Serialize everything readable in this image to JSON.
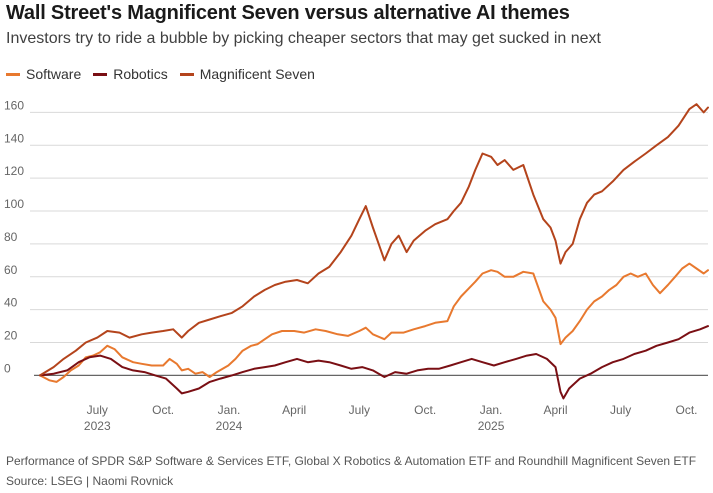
{
  "header": {
    "title": "Wall Street's Magnificent Seven versus alternative AI themes",
    "subtitle": "Investors try to ride a bubble by picking cheaper sectors that may get sucked in next"
  },
  "footer": {
    "note": "Performance of SPDR S&P Software & Services ETF, Global X Robotics & Automation ETF and Roundhill Magnificent Seven ETF",
    "source": "Source: LSEG | Naomi Rovnick"
  },
  "chart_data": {
    "type": "line",
    "title": "Wall Street's Magnificent Seven versus alternative AI themes",
    "subtitle": "Investors try to ride a bubble by picking cheaper sectors that may get sucked in next",
    "xlabel": "",
    "ylabel": "",
    "ylim": [
      -15,
      170
    ],
    "xlim": [
      "2023-04-12",
      "2025-10-31"
    ],
    "yticks": [
      0,
      20,
      40,
      60,
      80,
      100,
      120,
      140,
      160
    ],
    "xticks": [
      {
        "date": "2023-07-01",
        "label": "July",
        "year": "2023"
      },
      {
        "date": "2023-10-01",
        "label": "Oct.",
        "year": ""
      },
      {
        "date": "2024-01-01",
        "label": "Jan.",
        "year": "2024"
      },
      {
        "date": "2024-04-01",
        "label": "April",
        "year": ""
      },
      {
        "date": "2024-07-01",
        "label": "July",
        "year": ""
      },
      {
        "date": "2024-10-01",
        "label": "Oct.",
        "year": ""
      },
      {
        "date": "2025-01-01",
        "label": "Jan.",
        "year": "2025"
      },
      {
        "date": "2025-04-01",
        "label": "April",
        "year": ""
      },
      {
        "date": "2025-07-01",
        "label": "July",
        "year": ""
      },
      {
        "date": "2025-10-01",
        "label": "Oct.",
        "year": ""
      }
    ],
    "grid": true,
    "legend_position": "top-left",
    "series": [
      {
        "name": "Software",
        "color": "#e8792f",
        "points": [
          [
            "2023-04-12",
            0
          ],
          [
            "2023-04-25",
            -3
          ],
          [
            "2023-05-05",
            -4
          ],
          [
            "2023-05-15",
            -1
          ],
          [
            "2023-05-25",
            3
          ],
          [
            "2023-06-05",
            6
          ],
          [
            "2023-06-15",
            11
          ],
          [
            "2023-06-25",
            12
          ],
          [
            "2023-07-05",
            14
          ],
          [
            "2023-07-15",
            18
          ],
          [
            "2023-07-25",
            16
          ],
          [
            "2023-08-05",
            11
          ],
          [
            "2023-08-20",
            8
          ],
          [
            "2023-09-01",
            7
          ],
          [
            "2023-09-15",
            6
          ],
          [
            "2023-10-01",
            6
          ],
          [
            "2023-10-10",
            10
          ],
          [
            "2023-10-20",
            7
          ],
          [
            "2023-10-27",
            3
          ],
          [
            "2023-11-05",
            4
          ],
          [
            "2023-11-15",
            1
          ],
          [
            "2023-11-25",
            2
          ],
          [
            "2023-12-05",
            -1
          ],
          [
            "2023-12-15",
            2
          ],
          [
            "2023-12-31",
            6
          ],
          [
            "2024-01-10",
            10
          ],
          [
            "2024-01-20",
            15
          ],
          [
            "2024-02-01",
            18
          ],
          [
            "2024-02-10",
            19
          ],
          [
            "2024-02-20",
            22
          ],
          [
            "2024-03-01",
            25
          ],
          [
            "2024-03-15",
            27
          ],
          [
            "2024-04-01",
            27
          ],
          [
            "2024-04-15",
            26
          ],
          [
            "2024-05-01",
            28
          ],
          [
            "2024-05-15",
            27
          ],
          [
            "2024-06-01",
            25
          ],
          [
            "2024-06-15",
            24
          ],
          [
            "2024-07-01",
            27
          ],
          [
            "2024-07-10",
            29
          ],
          [
            "2024-07-20",
            25
          ],
          [
            "2024-08-05",
            22
          ],
          [
            "2024-08-15",
            26
          ],
          [
            "2024-09-01",
            26
          ],
          [
            "2024-09-15",
            28
          ],
          [
            "2024-10-01",
            30
          ],
          [
            "2024-10-15",
            32
          ],
          [
            "2024-11-01",
            33
          ],
          [
            "2024-11-10",
            42
          ],
          [
            "2024-11-20",
            48
          ],
          [
            "2024-12-01",
            53
          ],
          [
            "2024-12-10",
            57
          ],
          [
            "2024-12-20",
            62
          ],
          [
            "2025-01-01",
            64
          ],
          [
            "2025-01-10",
            63
          ],
          [
            "2025-01-20",
            60
          ],
          [
            "2025-02-01",
            60
          ],
          [
            "2025-02-15",
            63
          ],
          [
            "2025-03-01",
            62
          ],
          [
            "2025-03-15",
            45
          ],
          [
            "2025-03-25",
            40
          ],
          [
            "2025-04-01",
            35
          ],
          [
            "2025-04-08",
            19
          ],
          [
            "2025-04-15",
            23
          ],
          [
            "2025-04-25",
            27
          ],
          [
            "2025-05-05",
            33
          ],
          [
            "2025-05-15",
            40
          ],
          [
            "2025-05-25",
            45
          ],
          [
            "2025-06-05",
            48
          ],
          [
            "2025-06-15",
            52
          ],
          [
            "2025-06-25",
            55
          ],
          [
            "2025-07-05",
            60
          ],
          [
            "2025-07-15",
            62
          ],
          [
            "2025-07-25",
            60
          ],
          [
            "2025-08-05",
            62
          ],
          [
            "2025-08-15",
            55
          ],
          [
            "2025-08-25",
            50
          ],
          [
            "2025-09-05",
            55
          ],
          [
            "2025-09-15",
            60
          ],
          [
            "2025-09-25",
            65
          ],
          [
            "2025-10-05",
            68
          ],
          [
            "2025-10-15",
            65
          ],
          [
            "2025-10-25",
            62
          ],
          [
            "2025-10-31",
            64
          ]
        ]
      },
      {
        "name": "Robotics",
        "color": "#7a0f14",
        "points": [
          [
            "2023-04-12",
            0
          ],
          [
            "2023-05-01",
            1
          ],
          [
            "2023-05-20",
            3
          ],
          [
            "2023-06-05",
            8
          ],
          [
            "2023-06-20",
            11
          ],
          [
            "2023-07-05",
            12
          ],
          [
            "2023-07-20",
            10
          ],
          [
            "2023-08-05",
            5
          ],
          [
            "2023-08-20",
            3
          ],
          [
            "2023-09-05",
            2
          ],
          [
            "2023-09-20",
            0
          ],
          [
            "2023-10-05",
            -2
          ],
          [
            "2023-10-20",
            -8
          ],
          [
            "2023-10-27",
            -11
          ],
          [
            "2023-11-05",
            -10
          ],
          [
            "2023-11-20",
            -8
          ],
          [
            "2023-12-05",
            -4
          ],
          [
            "2023-12-20",
            -2
          ],
          [
            "2024-01-05",
            0
          ],
          [
            "2024-01-20",
            2
          ],
          [
            "2024-02-05",
            4
          ],
          [
            "2024-02-20",
            5
          ],
          [
            "2024-03-05",
            6
          ],
          [
            "2024-03-20",
            8
          ],
          [
            "2024-04-05",
            10
          ],
          [
            "2024-04-20",
            8
          ],
          [
            "2024-05-05",
            9
          ],
          [
            "2024-05-20",
            8
          ],
          [
            "2024-06-05",
            6
          ],
          [
            "2024-06-20",
            4
          ],
          [
            "2024-07-05",
            5
          ],
          [
            "2024-07-20",
            3
          ],
          [
            "2024-08-05",
            -1
          ],
          [
            "2024-08-20",
            2
          ],
          [
            "2024-09-05",
            1
          ],
          [
            "2024-09-20",
            3
          ],
          [
            "2024-10-05",
            4
          ],
          [
            "2024-10-20",
            4
          ],
          [
            "2024-11-05",
            6
          ],
          [
            "2024-11-20",
            8
          ],
          [
            "2024-12-05",
            10
          ],
          [
            "2024-12-20",
            8
          ],
          [
            "2025-01-05",
            6
          ],
          [
            "2025-01-20",
            8
          ],
          [
            "2025-02-05",
            10
          ],
          [
            "2025-02-20",
            12
          ],
          [
            "2025-03-05",
            13
          ],
          [
            "2025-03-20",
            10
          ],
          [
            "2025-04-01",
            5
          ],
          [
            "2025-04-08",
            -10
          ],
          [
            "2025-04-12",
            -14
          ],
          [
            "2025-04-20",
            -8
          ],
          [
            "2025-05-05",
            -2
          ],
          [
            "2025-05-20",
            1
          ],
          [
            "2025-06-05",
            5
          ],
          [
            "2025-06-20",
            8
          ],
          [
            "2025-07-05",
            10
          ],
          [
            "2025-07-20",
            13
          ],
          [
            "2025-08-05",
            15
          ],
          [
            "2025-08-20",
            18
          ],
          [
            "2025-09-05",
            20
          ],
          [
            "2025-09-20",
            22
          ],
          [
            "2025-10-05",
            26
          ],
          [
            "2025-10-20",
            28
          ],
          [
            "2025-10-31",
            30
          ]
        ]
      },
      {
        "name": "Magnificent Seven",
        "color": "#b4441c",
        "points": [
          [
            "2023-04-12",
            0
          ],
          [
            "2023-05-01",
            5
          ],
          [
            "2023-05-15",
            10
          ],
          [
            "2023-06-01",
            15
          ],
          [
            "2023-06-15",
            20
          ],
          [
            "2023-07-01",
            23
          ],
          [
            "2023-07-15",
            27
          ],
          [
            "2023-08-01",
            26
          ],
          [
            "2023-08-15",
            23
          ],
          [
            "2023-09-01",
            25
          ],
          [
            "2023-09-15",
            26
          ],
          [
            "2023-10-01",
            27
          ],
          [
            "2023-10-15",
            28
          ],
          [
            "2023-10-27",
            23
          ],
          [
            "2023-11-05",
            27
          ],
          [
            "2023-11-20",
            32
          ],
          [
            "2023-12-05",
            34
          ],
          [
            "2023-12-20",
            36
          ],
          [
            "2024-01-05",
            38
          ],
          [
            "2024-01-20",
            42
          ],
          [
            "2024-02-05",
            48
          ],
          [
            "2024-02-20",
            52
          ],
          [
            "2024-03-05",
            55
          ],
          [
            "2024-03-20",
            57
          ],
          [
            "2024-04-05",
            58
          ],
          [
            "2024-04-20",
            56
          ],
          [
            "2024-05-05",
            62
          ],
          [
            "2024-05-20",
            66
          ],
          [
            "2024-06-05",
            75
          ],
          [
            "2024-06-20",
            85
          ],
          [
            "2024-07-01",
            95
          ],
          [
            "2024-07-10",
            103
          ],
          [
            "2024-07-20",
            90
          ],
          [
            "2024-07-28",
            80
          ],
          [
            "2024-08-05",
            70
          ],
          [
            "2024-08-15",
            80
          ],
          [
            "2024-08-25",
            85
          ],
          [
            "2024-09-05",
            75
          ],
          [
            "2024-09-15",
            82
          ],
          [
            "2024-10-01",
            88
          ],
          [
            "2024-10-15",
            92
          ],
          [
            "2024-11-01",
            95
          ],
          [
            "2024-11-10",
            100
          ],
          [
            "2024-11-20",
            105
          ],
          [
            "2024-12-01",
            115
          ],
          [
            "2024-12-10",
            125
          ],
          [
            "2024-12-20",
            135
          ],
          [
            "2025-01-01",
            133
          ],
          [
            "2025-01-10",
            128
          ],
          [
            "2025-01-20",
            131
          ],
          [
            "2025-02-01",
            125
          ],
          [
            "2025-02-15",
            128
          ],
          [
            "2025-03-01",
            110
          ],
          [
            "2025-03-15",
            95
          ],
          [
            "2025-03-25",
            90
          ],
          [
            "2025-04-01",
            82
          ],
          [
            "2025-04-08",
            68
          ],
          [
            "2025-04-15",
            75
          ],
          [
            "2025-04-25",
            80
          ],
          [
            "2025-05-05",
            95
          ],
          [
            "2025-05-15",
            105
          ],
          [
            "2025-05-25",
            110
          ],
          [
            "2025-06-05",
            112
          ],
          [
            "2025-06-20",
            118
          ],
          [
            "2025-07-05",
            125
          ],
          [
            "2025-07-20",
            130
          ],
          [
            "2025-08-05",
            135
          ],
          [
            "2025-08-20",
            140
          ],
          [
            "2025-09-05",
            145
          ],
          [
            "2025-09-20",
            152
          ],
          [
            "2025-10-05",
            162
          ],
          [
            "2025-10-15",
            165
          ],
          [
            "2025-10-25",
            160
          ],
          [
            "2025-10-31",
            163
          ]
        ]
      }
    ]
  }
}
